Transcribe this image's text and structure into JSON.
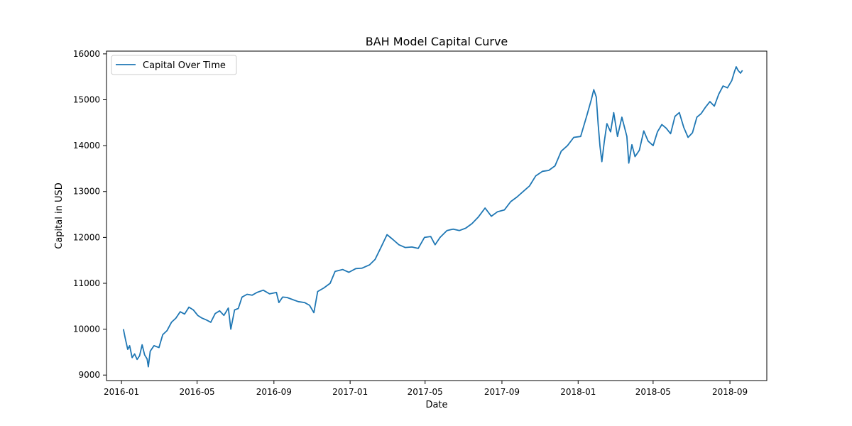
{
  "chart_data": {
    "type": "line",
    "title": "BAH Model Capital Curve",
    "xlabel": "Date",
    "ylabel": "Capital in USD",
    "x_ticks": [
      "2016-01",
      "2016-05",
      "2016-09",
      "2017-01",
      "2017-05",
      "2017-09",
      "2018-01",
      "2018-05",
      "2018-09"
    ],
    "y_ticks": [
      9000,
      10000,
      11000,
      12000,
      13000,
      14000,
      15000,
      16000
    ],
    "xlim": [
      "2015-12-08",
      "2018-10-30"
    ],
    "ylim": [
      8880,
      16060
    ],
    "grid": false,
    "legend_position": "top-left",
    "series": [
      {
        "name": "Capital Over Time",
        "color": "#1f77b4",
        "points": [
          [
            "2016-01-04",
            10000
          ],
          [
            "2016-01-07",
            9800
          ],
          [
            "2016-01-11",
            9560
          ],
          [
            "2016-01-14",
            9640
          ],
          [
            "2016-01-18",
            9380
          ],
          [
            "2016-01-22",
            9460
          ],
          [
            "2016-01-26",
            9340
          ],
          [
            "2016-01-30",
            9420
          ],
          [
            "2016-02-03",
            9660
          ],
          [
            "2016-02-07",
            9440
          ],
          [
            "2016-02-11",
            9350
          ],
          [
            "2016-02-13",
            9180
          ],
          [
            "2016-02-16",
            9520
          ],
          [
            "2016-02-22",
            9640
          ],
          [
            "2016-03-01",
            9600
          ],
          [
            "2016-03-07",
            9880
          ],
          [
            "2016-03-14",
            9970
          ],
          [
            "2016-03-21",
            10150
          ],
          [
            "2016-03-28",
            10240
          ],
          [
            "2016-04-04",
            10380
          ],
          [
            "2016-04-11",
            10330
          ],
          [
            "2016-04-18",
            10480
          ],
          [
            "2016-04-25",
            10420
          ],
          [
            "2016-05-02",
            10300
          ],
          [
            "2016-05-09",
            10240
          ],
          [
            "2016-05-16",
            10200
          ],
          [
            "2016-05-23",
            10150
          ],
          [
            "2016-05-30",
            10340
          ],
          [
            "2016-06-06",
            10400
          ],
          [
            "2016-06-13",
            10300
          ],
          [
            "2016-06-20",
            10460
          ],
          [
            "2016-06-24",
            10000
          ],
          [
            "2016-06-30",
            10420
          ],
          [
            "2016-07-06",
            10450
          ],
          [
            "2016-07-12",
            10700
          ],
          [
            "2016-07-20",
            10760
          ],
          [
            "2016-07-28",
            10740
          ],
          [
            "2016-08-05",
            10800
          ],
          [
            "2016-08-15",
            10850
          ],
          [
            "2016-08-25",
            10770
          ],
          [
            "2016-09-05",
            10800
          ],
          [
            "2016-09-09",
            10580
          ],
          [
            "2016-09-15",
            10700
          ],
          [
            "2016-09-22",
            10690
          ],
          [
            "2016-09-30",
            10650
          ],
          [
            "2016-10-10",
            10600
          ],
          [
            "2016-10-20",
            10580
          ],
          [
            "2016-10-28",
            10520
          ],
          [
            "2016-11-04",
            10360
          ],
          [
            "2016-11-10",
            10820
          ],
          [
            "2016-11-20",
            10900
          ],
          [
            "2016-11-30",
            11000
          ],
          [
            "2016-12-08",
            11260
          ],
          [
            "2016-12-20",
            11300
          ],
          [
            "2016-12-30",
            11240
          ],
          [
            "2017-01-10",
            11320
          ],
          [
            "2017-01-20",
            11330
          ],
          [
            "2017-02-01",
            11400
          ],
          [
            "2017-02-10",
            11520
          ],
          [
            "2017-02-20",
            11800
          ],
          [
            "2017-03-01",
            12060
          ],
          [
            "2017-03-10",
            11960
          ],
          [
            "2017-03-20",
            11840
          ],
          [
            "2017-03-30",
            11780
          ],
          [
            "2017-04-10",
            11790
          ],
          [
            "2017-04-20",
            11760
          ],
          [
            "2017-04-30",
            12000
          ],
          [
            "2017-05-10",
            12020
          ],
          [
            "2017-05-17",
            11840
          ],
          [
            "2017-05-25",
            12000
          ],
          [
            "2017-06-05",
            12150
          ],
          [
            "2017-06-15",
            12180
          ],
          [
            "2017-06-25",
            12150
          ],
          [
            "2017-07-05",
            12200
          ],
          [
            "2017-07-15",
            12300
          ],
          [
            "2017-07-25",
            12440
          ],
          [
            "2017-08-05",
            12640
          ],
          [
            "2017-08-15",
            12460
          ],
          [
            "2017-08-25",
            12560
          ],
          [
            "2017-09-05",
            12600
          ],
          [
            "2017-09-15",
            12780
          ],
          [
            "2017-09-25",
            12880
          ],
          [
            "2017-10-05",
            13000
          ],
          [
            "2017-10-15",
            13120
          ],
          [
            "2017-10-25",
            13340
          ],
          [
            "2017-11-05",
            13440
          ],
          [
            "2017-11-15",
            13460
          ],
          [
            "2017-11-25",
            13560
          ],
          [
            "2017-12-05",
            13880
          ],
          [
            "2017-12-15",
            14000
          ],
          [
            "2017-12-25",
            14180
          ],
          [
            "2018-01-05",
            14200
          ],
          [
            "2018-01-15",
            14660
          ],
          [
            "2018-01-22",
            15000
          ],
          [
            "2018-01-26",
            15220
          ],
          [
            "2018-01-30",
            15060
          ],
          [
            "2018-02-02",
            14480
          ],
          [
            "2018-02-05",
            13980
          ],
          [
            "2018-02-08",
            13650
          ],
          [
            "2018-02-12",
            14100
          ],
          [
            "2018-02-16",
            14480
          ],
          [
            "2018-02-22",
            14300
          ],
          [
            "2018-02-27",
            14720
          ],
          [
            "2018-03-05",
            14200
          ],
          [
            "2018-03-12",
            14620
          ],
          [
            "2018-03-20",
            14200
          ],
          [
            "2018-03-23",
            13620
          ],
          [
            "2018-03-28",
            14020
          ],
          [
            "2018-04-02",
            13760
          ],
          [
            "2018-04-09",
            13900
          ],
          [
            "2018-04-16",
            14320
          ],
          [
            "2018-04-23",
            14100
          ],
          [
            "2018-05-01",
            14000
          ],
          [
            "2018-05-08",
            14300
          ],
          [
            "2018-05-15",
            14460
          ],
          [
            "2018-05-22",
            14380
          ],
          [
            "2018-05-29",
            14260
          ],
          [
            "2018-06-05",
            14640
          ],
          [
            "2018-06-12",
            14720
          ],
          [
            "2018-06-19",
            14400
          ],
          [
            "2018-06-26",
            14180
          ],
          [
            "2018-07-03",
            14280
          ],
          [
            "2018-07-10",
            14620
          ],
          [
            "2018-07-17",
            14700
          ],
          [
            "2018-07-24",
            14840
          ],
          [
            "2018-07-31",
            14960
          ],
          [
            "2018-08-07",
            14860
          ],
          [
            "2018-08-14",
            15120
          ],
          [
            "2018-08-21",
            15300
          ],
          [
            "2018-08-28",
            15260
          ],
          [
            "2018-09-04",
            15420
          ],
          [
            "2018-09-08",
            15600
          ],
          [
            "2018-09-11",
            15720
          ],
          [
            "2018-09-14",
            15640
          ],
          [
            "2018-09-18",
            15580
          ],
          [
            "2018-09-21",
            15640
          ]
        ]
      }
    ]
  }
}
